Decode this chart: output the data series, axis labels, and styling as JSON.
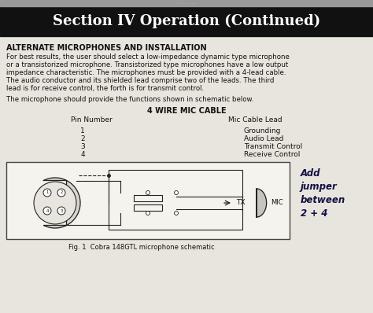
{
  "title": "Section IV Operation (Continued)",
  "title_bg": "#111111",
  "title_color": "#ffffff",
  "title_fontsize": 13,
  "body_bg": "#e8e5de",
  "section_heading": "ALTERNATE MICROPHONES AND INSTALLATION",
  "paragraph1_lines": [
    "For best results, the user should select a low-impedance dynamic type microphone",
    "or a transistorized microphone. Transistorized type microphones have a low output",
    "impedance characteristic. The microphones must be provided with a 4-lead cable.",
    "The audio conductor and its shielded lead comprise two of the leads. The third",
    "lead is for receive control, the forth is for transmit control."
  ],
  "paragraph2": "The microphone should provide the functions shown in schematic below.",
  "table_title": "4 WIRE MIC CABLE",
  "col1_header": "Pin Number",
  "col2_header": "Mic Cable Lead",
  "rows": [
    [
      "1",
      "Grounding"
    ],
    [
      "2",
      "Audio Lead"
    ],
    [
      "3",
      "Transmit Control"
    ],
    [
      "4",
      "Receive Control"
    ]
  ],
  "fig_caption": "Fig. 1  Cobra 148GTL microphone schematic",
  "handwritten_text": "Add\njumper\nbetween\n2 + 4",
  "diagram_box_color": "#f5f3ee",
  "diagram_border_color": "#444444",
  "wire_color": "#222222",
  "connector_face": "#d8d5cf",
  "component_face": "#e8e5de",
  "mic_face": "#c8c5be",
  "handwritten_color": "#111144"
}
